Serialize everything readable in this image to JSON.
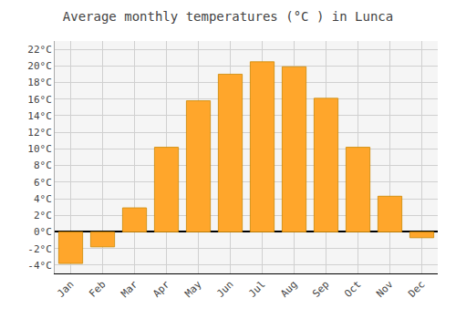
{
  "chart_data": {
    "type": "bar",
    "title": "Average monthly temperatures (°C ) in Lunca",
    "categories": [
      "Jan",
      "Feb",
      "Mar",
      "Apr",
      "May",
      "Jun",
      "Jul",
      "Aug",
      "Sep",
      "Oct",
      "Nov",
      "Dec"
    ],
    "values": [
      -3.8,
      -1.8,
      2.9,
      10.2,
      15.8,
      19.0,
      20.5,
      19.9,
      16.1,
      10.2,
      4.3,
      -0.7
    ],
    "color": "#FFA62B",
    "ylim": [
      -5,
      23
    ],
    "yticks": [
      {
        "value": -4,
        "label": "-4°C"
      },
      {
        "value": -2,
        "label": "-2°C"
      },
      {
        "value": 0,
        "label": "0°C"
      },
      {
        "value": 2,
        "label": "2°C"
      },
      {
        "value": 4,
        "label": "4°C"
      },
      {
        "value": 6,
        "label": "6°C"
      },
      {
        "value": 8,
        "label": "8°C"
      },
      {
        "value": 10,
        "label": "10°C"
      },
      {
        "value": 12,
        "label": "12°C"
      },
      {
        "value": 14,
        "label": "14°C"
      },
      {
        "value": 16,
        "label": "16°C"
      },
      {
        "value": 18,
        "label": "18°C"
      },
      {
        "value": 20,
        "label": "20°C"
      },
      {
        "value": 22,
        "label": "22°C"
      }
    ],
    "grid": true
  }
}
